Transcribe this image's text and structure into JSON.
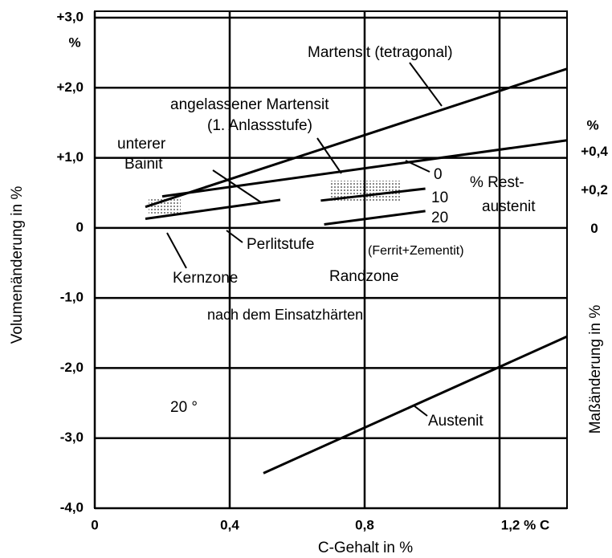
{
  "chart_data": {
    "type": "line",
    "x_label": "C-Gehalt in %",
    "y_label": "Volumenänderung in %",
    "y2_label": "Maßänderung in %",
    "xlim": [
      0,
      1.4
    ],
    "xticks": [
      0,
      {
        "value": 0.4,
        "label": "0,4"
      },
      {
        "value": 0.8,
        "label": "0,8"
      },
      {
        "value": 1.2,
        "label": "1,2 % C"
      }
    ],
    "ylim": [
      -4,
      3
    ],
    "yticks": [
      {
        "value": -4,
        "label": "-4,0"
      },
      {
        "value": -3,
        "label": "-3,0"
      },
      {
        "value": -2,
        "label": "-2,0"
      },
      {
        "value": -1,
        "label": "-1,0"
      },
      0,
      {
        "value": 1,
        "label": "+1,0"
      },
      {
        "value": 2,
        "label": "+2,0"
      },
      {
        "value": 3,
        "label": "+3,0"
      }
    ],
    "y2lim": [
      -1.45,
      1.1
    ],
    "y2ticks": [
      0,
      {
        "value": 0.2,
        "label": "+0,2"
      },
      {
        "value": 0.4,
        "label": "+0,4"
      }
    ],
    "grid": true,
    "color": "#000000",
    "series": [
      {
        "name": "Martensit (tetragonal)",
        "x": [
          0.15,
          1.4
        ],
        "values": [
          0.3,
          2.27
        ]
      },
      {
        "name": "angelassener Martensit",
        "x": [
          0.2,
          1.4
        ],
        "values": [
          0.45,
          1.25
        ]
      },
      {
        "x": [
          0.15,
          0.55
        ],
        "values": [
          0.13,
          0.4
        ]
      },
      {
        "name": "10",
        "x": [
          0.67,
          0.98
        ],
        "values": [
          0.39,
          0.56
        ]
      },
      {
        "name": "20",
        "x": [
          0.68,
          0.98
        ],
        "values": [
          0.05,
          0.24
        ]
      },
      {
        "name": "Austenit",
        "x": [
          0.5,
          1.4
        ],
        "values": [
          -3.5,
          -1.55
        ]
      }
    ],
    "annotations": [
      {
        "text": "%"
      },
      {
        "text": "%"
      },
      {
        "text": "(1. Anlassstufe)"
      },
      {
        "text": "unterer"
      },
      {
        "text": "Bainit"
      },
      {
        "text": "Perlitstufe"
      },
      {
        "text": "Kernzone"
      },
      {
        "text": "Randzone"
      },
      {
        "text": "(Ferrit+Zementit)"
      },
      {
        "text": "0"
      },
      {
        "text": "% Rest-"
      },
      {
        "text": "austenit"
      },
      {
        "text": "nach dem Einsatzhärten"
      },
      {
        "text": "20 °"
      }
    ]
  }
}
